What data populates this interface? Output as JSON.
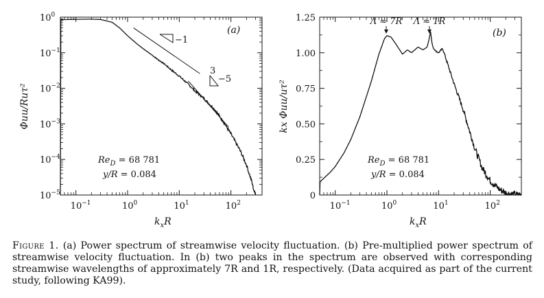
{
  "figure": {
    "panel_a": {
      "label": "(a)",
      "xlabel_main": "k",
      "xlabel_sub": "x",
      "xlabel_tail": "R",
      "ylabel": "Φuu/Ruτ²",
      "x_ticks": [
        {
          "value": 0.1,
          "base": "10",
          "exp": "−1"
        },
        {
          "value": 1,
          "base": "10",
          "exp": "0"
        },
        {
          "value": 10,
          "base": "10",
          "exp": "1"
        },
        {
          "value": 100,
          "base": "10",
          "exp": "2"
        }
      ],
      "y_ticks": [
        {
          "value": 1,
          "base": "10",
          "exp": "0"
        },
        {
          "value": 0.1,
          "base": "10",
          "exp": "−1"
        },
        {
          "value": 0.01,
          "base": "10",
          "exp": "−2"
        },
        {
          "value": 0.001,
          "base": "10",
          "exp": "−3"
        },
        {
          "value": 0.0001,
          "base": "10",
          "exp": "−4"
        },
        {
          "value": 1e-05,
          "base": "10",
          "exp": "−5"
        }
      ],
      "annotation_re": "Re",
      "annotation_re_sub": "D",
      "annotation_re_value": " = 68 781",
      "annotation_y": "y/R",
      "annotation_y_value": " = 0.084",
      "slope_1_label": "−1",
      "slope_5_label_top": "3",
      "slope_5_label_right": "−5"
    },
    "panel_b": {
      "label": "(b)",
      "xlabel_main": "k",
      "xlabel_sub": "x",
      "xlabel_tail": "R",
      "ylabel": "kx Φuu/uτ²",
      "x_ticks": [
        {
          "value": 0.1,
          "base": "10",
          "exp": "−1"
        },
        {
          "value": 1,
          "base": "10",
          "exp": "0"
        },
        {
          "value": 10,
          "base": "10",
          "exp": "1"
        },
        {
          "value": 100,
          "base": "10",
          "exp": "2"
        }
      ],
      "y_ticks": [
        "0",
        "0.25",
        "0.50",
        "0.75",
        "1.00",
        "1.25"
      ],
      "peak_1_label": "Λ ≈ 7R",
      "peak_2_label": "Λ ≈ 1R",
      "annotation_re": "Re",
      "annotation_re_sub": "D",
      "annotation_re_value": " = 68 781",
      "annotation_y": "y/R",
      "annotation_y_value": " = 0.084"
    }
  },
  "chart_data": [
    {
      "type": "line",
      "panel": "(a)",
      "x_scale": "log",
      "y_scale": "log",
      "xlabel": "kxR",
      "ylabel": "Φuu/Ruτ²",
      "xlim": [
        0.05,
        400
      ],
      "ylim": [
        1e-05,
        1
      ],
      "x": [
        0.05,
        0.1,
        0.2,
        0.3,
        0.5,
        0.7,
        1,
        1.5,
        2,
        3,
        4,
        5,
        7,
        10,
        15,
        20,
        30,
        50,
        70,
        100,
        150,
        200,
        250,
        280,
        300
      ],
      "y": [
        0.85,
        0.87,
        0.88,
        0.86,
        0.72,
        0.5,
        0.3,
        0.18,
        0.13,
        0.085,
        0.062,
        0.05,
        0.033,
        0.022,
        0.013,
        0.0085,
        0.0052,
        0.0024,
        0.0012,
        0.00052,
        0.00018,
        7e-05,
        2.5e-05,
        1.3e-05,
        1e-05
      ],
      "reference_lines": [
        {
          "slope": -1,
          "x": [
            1.3,
            25
          ],
          "y": [
            0.5,
            0.026
          ]
        },
        {
          "slope": -1.6667,
          "x": [
            15,
            90
          ],
          "y": [
            0.016,
            0.00081
          ]
        }
      ]
    },
    {
      "type": "line",
      "panel": "(b)",
      "x_scale": "log",
      "xlabel": "kxR",
      "ylabel": "kxΦuu/uτ²",
      "xlim": [
        0.05,
        400
      ],
      "ylim": [
        0,
        1.25
      ],
      "x": [
        0.05,
        0.08,
        0.1,
        0.15,
        0.2,
        0.3,
        0.5,
        0.7,
        0.9,
        1,
        1.2,
        1.5,
        2,
        2.5,
        3,
        4,
        5,
        6,
        6.5,
        7,
        7.5,
        8,
        9,
        10,
        12,
        15,
        20,
        30,
        50,
        70,
        100,
        150,
        200,
        300,
        400
      ],
      "y": [
        0.09,
        0.16,
        0.2,
        0.3,
        0.39,
        0.55,
        0.8,
        0.99,
        1.1,
        1.12,
        1.11,
        1.06,
        0.99,
        1.02,
        1.0,
        1.04,
        1.02,
        1.04,
        1.09,
        1.15,
        1.06,
        1.03,
        1.01,
        1.0,
        1.03,
        0.92,
        0.78,
        0.6,
        0.33,
        0.19,
        0.1,
        0.04,
        0.015,
        0.003,
        0.001
      ]
    }
  ],
  "caption": {
    "label": "Figure 1.",
    "text": " (a) Power spectrum of streamwise velocity fluctuation. (b) Pre-multiplied power spectrum of streamwise velocity fluctuation. In (b) two peaks in the spectrum are observed with corresponding streamwise wavelengths of approximately 7R and 1R, respectively. (Data acquired as part of the current study, following KA99)."
  }
}
